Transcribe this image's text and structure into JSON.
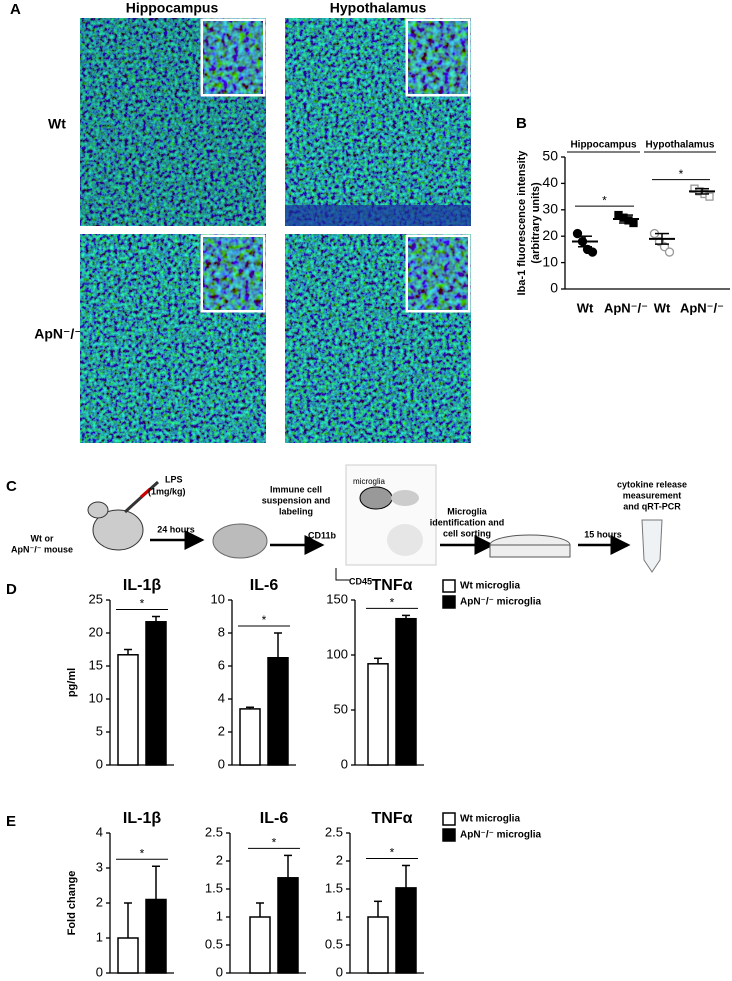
{
  "panel_labels": [
    "A",
    "B",
    "C",
    "D",
    "E"
  ],
  "panel_a": {
    "columns": [
      "Hippocampus",
      "Hypothalamus"
    ],
    "rows": [
      "Wt",
      "ApN⁻/⁻"
    ]
  },
  "panel_c": {
    "lps": "LPS",
    "dose": "(1mg/kg)",
    "mouse": [
      "Wt or",
      "ApN⁻/⁻ mouse"
    ],
    "time_1": "24 hours",
    "suspension": [
      "Immune cell",
      "suspension and",
      "labeling"
    ],
    "gate": "microglia",
    "x_axis": "CD45",
    "y_axis": "CD11b",
    "sorting": [
      "Microglia",
      "identification and",
      "cell sorting"
    ],
    "time_2": "15 hours",
    "readout": [
      "cytokine release",
      "measurement",
      "and qRT-PCR"
    ]
  },
  "chart_data": [
    {
      "type": "scatter",
      "ylabel": [
        "Iba-1 fluorescence intensity",
        "(arbitrary units)"
      ],
      "groups": [
        "Hippocampus",
        "Hypothalamus"
      ],
      "categories": [
        "Wt",
        "ApN⁻/⁻",
        "Wt",
        "ApN⁻/⁻"
      ],
      "ylim": [
        0,
        50
      ],
      "yticks": [
        0,
        10,
        20,
        30,
        40,
        50
      ],
      "annotations": [
        "*",
        "*"
      ],
      "series": [
        {
          "color": "#000000",
          "marker": "circle",
          "filled": true,
          "values": [
            21,
            18,
            15,
            14
          ],
          "mean": 18,
          "sem": 2
        },
        {
          "color": "#000000",
          "marker": "square",
          "filled": true,
          "values": [
            28,
            27,
            26,
            25
          ],
          "mean": 26.5,
          "sem": 1.5
        },
        {
          "color": "#999999",
          "marker": "circle",
          "filled": false,
          "values": [
            21,
            18,
            16,
            14
          ],
          "mean": 19,
          "sem": 2
        },
        {
          "color": "#999999",
          "marker": "square",
          "filled": false,
          "values": [
            38,
            37,
            36,
            35
          ],
          "mean": 37,
          "sem": 1
        }
      ]
    },
    {
      "type": "bar",
      "title": "IL-1β",
      "ylabel": "pg/ml",
      "ylim": [
        0,
        25
      ],
      "yticks": [
        0,
        5,
        10,
        15,
        20,
        25
      ],
      "annotation": "*",
      "series": [
        {
          "name": "Wt microglia",
          "color": "#ffffff",
          "values": [
            16.7
          ],
          "errors": [
            0.8
          ]
        },
        {
          "name": "ApN⁻/⁻ microglia",
          "color": "#000000",
          "values": [
            21.7
          ],
          "errors": [
            0.8
          ]
        }
      ]
    },
    {
      "type": "bar",
      "title": "IL-6",
      "ylim": [
        0,
        10
      ],
      "yticks": [
        0,
        2,
        4,
        6,
        8,
        10
      ],
      "annotation": "*",
      "series": [
        {
          "color": "#ffffff",
          "values": [
            3.4
          ],
          "errors": [
            0.1
          ]
        },
        {
          "color": "#000000",
          "values": [
            6.5
          ],
          "errors": [
            1.5
          ]
        }
      ]
    },
    {
      "type": "bar",
      "title": "TNFα",
      "ylim": [
        0,
        150
      ],
      "yticks": [
        0,
        50,
        100,
        150
      ],
      "annotation": "*",
      "series": [
        {
          "color": "#ffffff",
          "values": [
            92
          ],
          "errors": [
            5
          ]
        },
        {
          "color": "#000000",
          "values": [
            133
          ],
          "errors": [
            3
          ]
        }
      ]
    },
    {
      "type": "bar",
      "title": "IL-1β",
      "ylabel": "Fold change",
      "ylim": [
        0,
        4
      ],
      "yticks": [
        0,
        1,
        2,
        3,
        4
      ],
      "annotation": "*",
      "series": [
        {
          "name": "Wt microglia",
          "color": "#ffffff",
          "values": [
            1
          ],
          "errors": [
            1
          ]
        },
        {
          "name": "ApN⁻/⁻ microglia",
          "color": "#000000",
          "values": [
            2.1
          ],
          "errors": [
            0.95
          ]
        }
      ]
    },
    {
      "type": "bar",
      "title": "IL-6",
      "ylim": [
        0,
        2.5
      ],
      "yticks": [
        0,
        0.5,
        1,
        1.5,
        2,
        2.5
      ],
      "annotation": "*",
      "series": [
        {
          "color": "#ffffff",
          "values": [
            1
          ],
          "errors": [
            0.25
          ]
        },
        {
          "color": "#000000",
          "values": [
            1.7
          ],
          "errors": [
            0.4
          ]
        }
      ]
    },
    {
      "type": "bar",
      "title": "TNFα",
      "ylim": [
        0,
        2.5
      ],
      "yticks": [
        0,
        0.5,
        1,
        1.5,
        2,
        2.5
      ],
      "annotation": "*",
      "series": [
        {
          "color": "#ffffff",
          "values": [
            1
          ],
          "errors": [
            0.28
          ]
        },
        {
          "color": "#000000",
          "values": [
            1.52
          ],
          "errors": [
            0.4
          ]
        }
      ]
    }
  ]
}
